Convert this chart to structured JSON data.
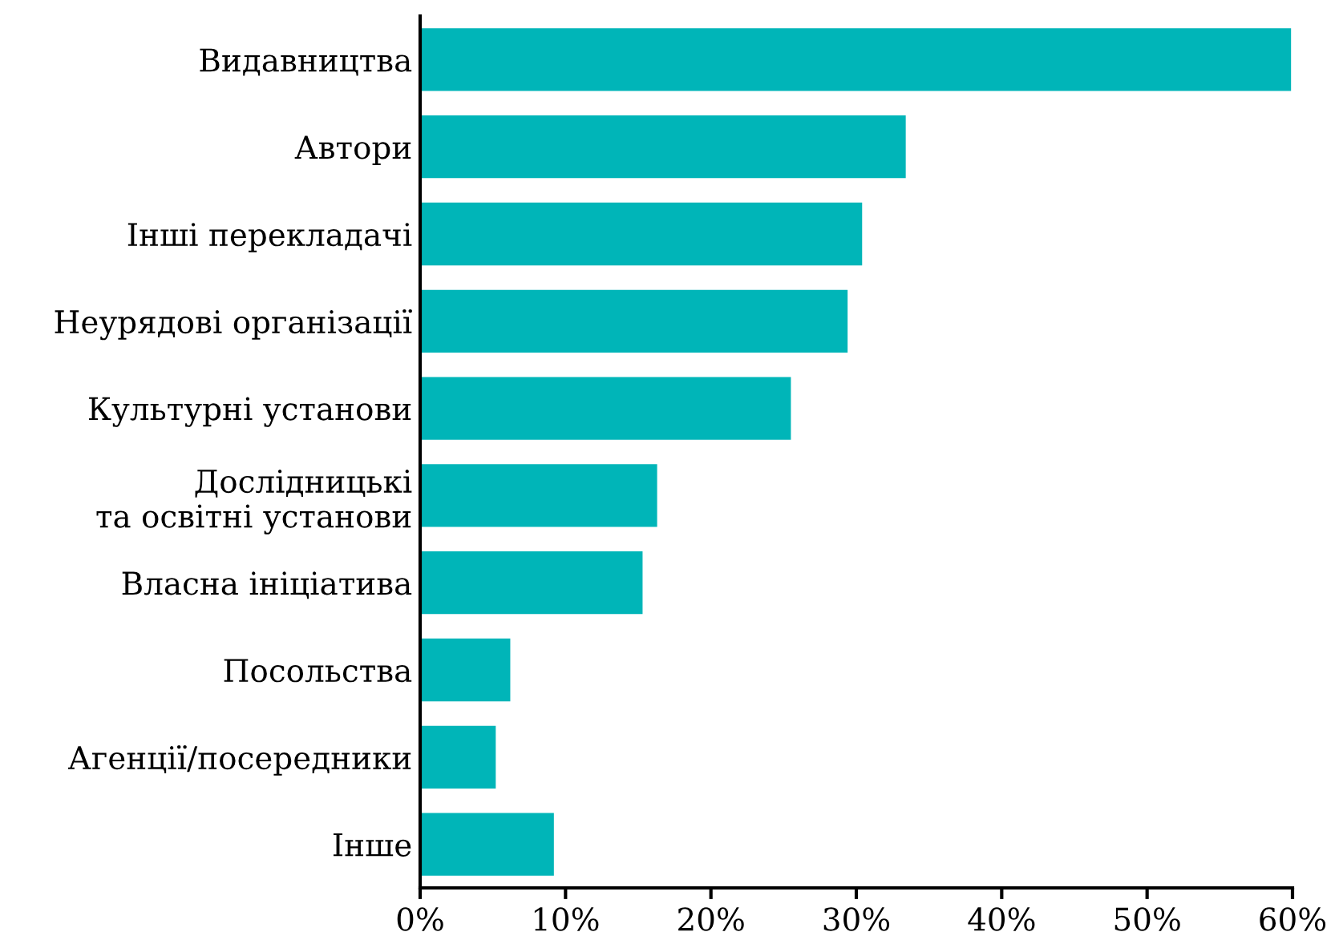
{
  "chart_data": {
    "type": "bar",
    "orientation": "horizontal",
    "categories": [
      "Видавництва",
      "Автори",
      "Інші перекладачі",
      "Неурядові організації",
      "Культурні установи",
      "Дослідницькі\nта освітні установи",
      "Власна ініціатива",
      "Посольства",
      "Агенції/посередники",
      "Інше"
    ],
    "values": [
      59.9,
      33.4,
      30.4,
      29.4,
      25.5,
      16.3,
      15.3,
      6.2,
      5.2,
      9.2
    ],
    "color": "#00b5b8",
    "xlim": [
      0,
      60
    ],
    "xticks": [
      {
        "value": 0,
        "label": "0%"
      },
      {
        "value": 10,
        "label": "10%"
      },
      {
        "value": 20,
        "label": "20%"
      },
      {
        "value": 30,
        "label": "30%"
      },
      {
        "value": 40,
        "label": "40%"
      },
      {
        "value": 50,
        "label": "50%"
      },
      {
        "value": 60,
        "label": "60%"
      }
    ],
    "grid": false,
    "legend": false
  }
}
